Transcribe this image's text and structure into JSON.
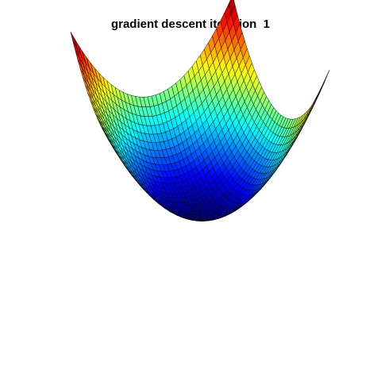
{
  "chart_data": {
    "type": "surface",
    "title": "gradient descent iteration  1",
    "function": "z = x^2 + y^2",
    "x_range": [
      -1,
      1
    ],
    "y_range": [
      -1,
      1
    ],
    "grid_cells": 40,
    "colormap": "jet",
    "mesh_lines": true,
    "axes_visible": false
  }
}
